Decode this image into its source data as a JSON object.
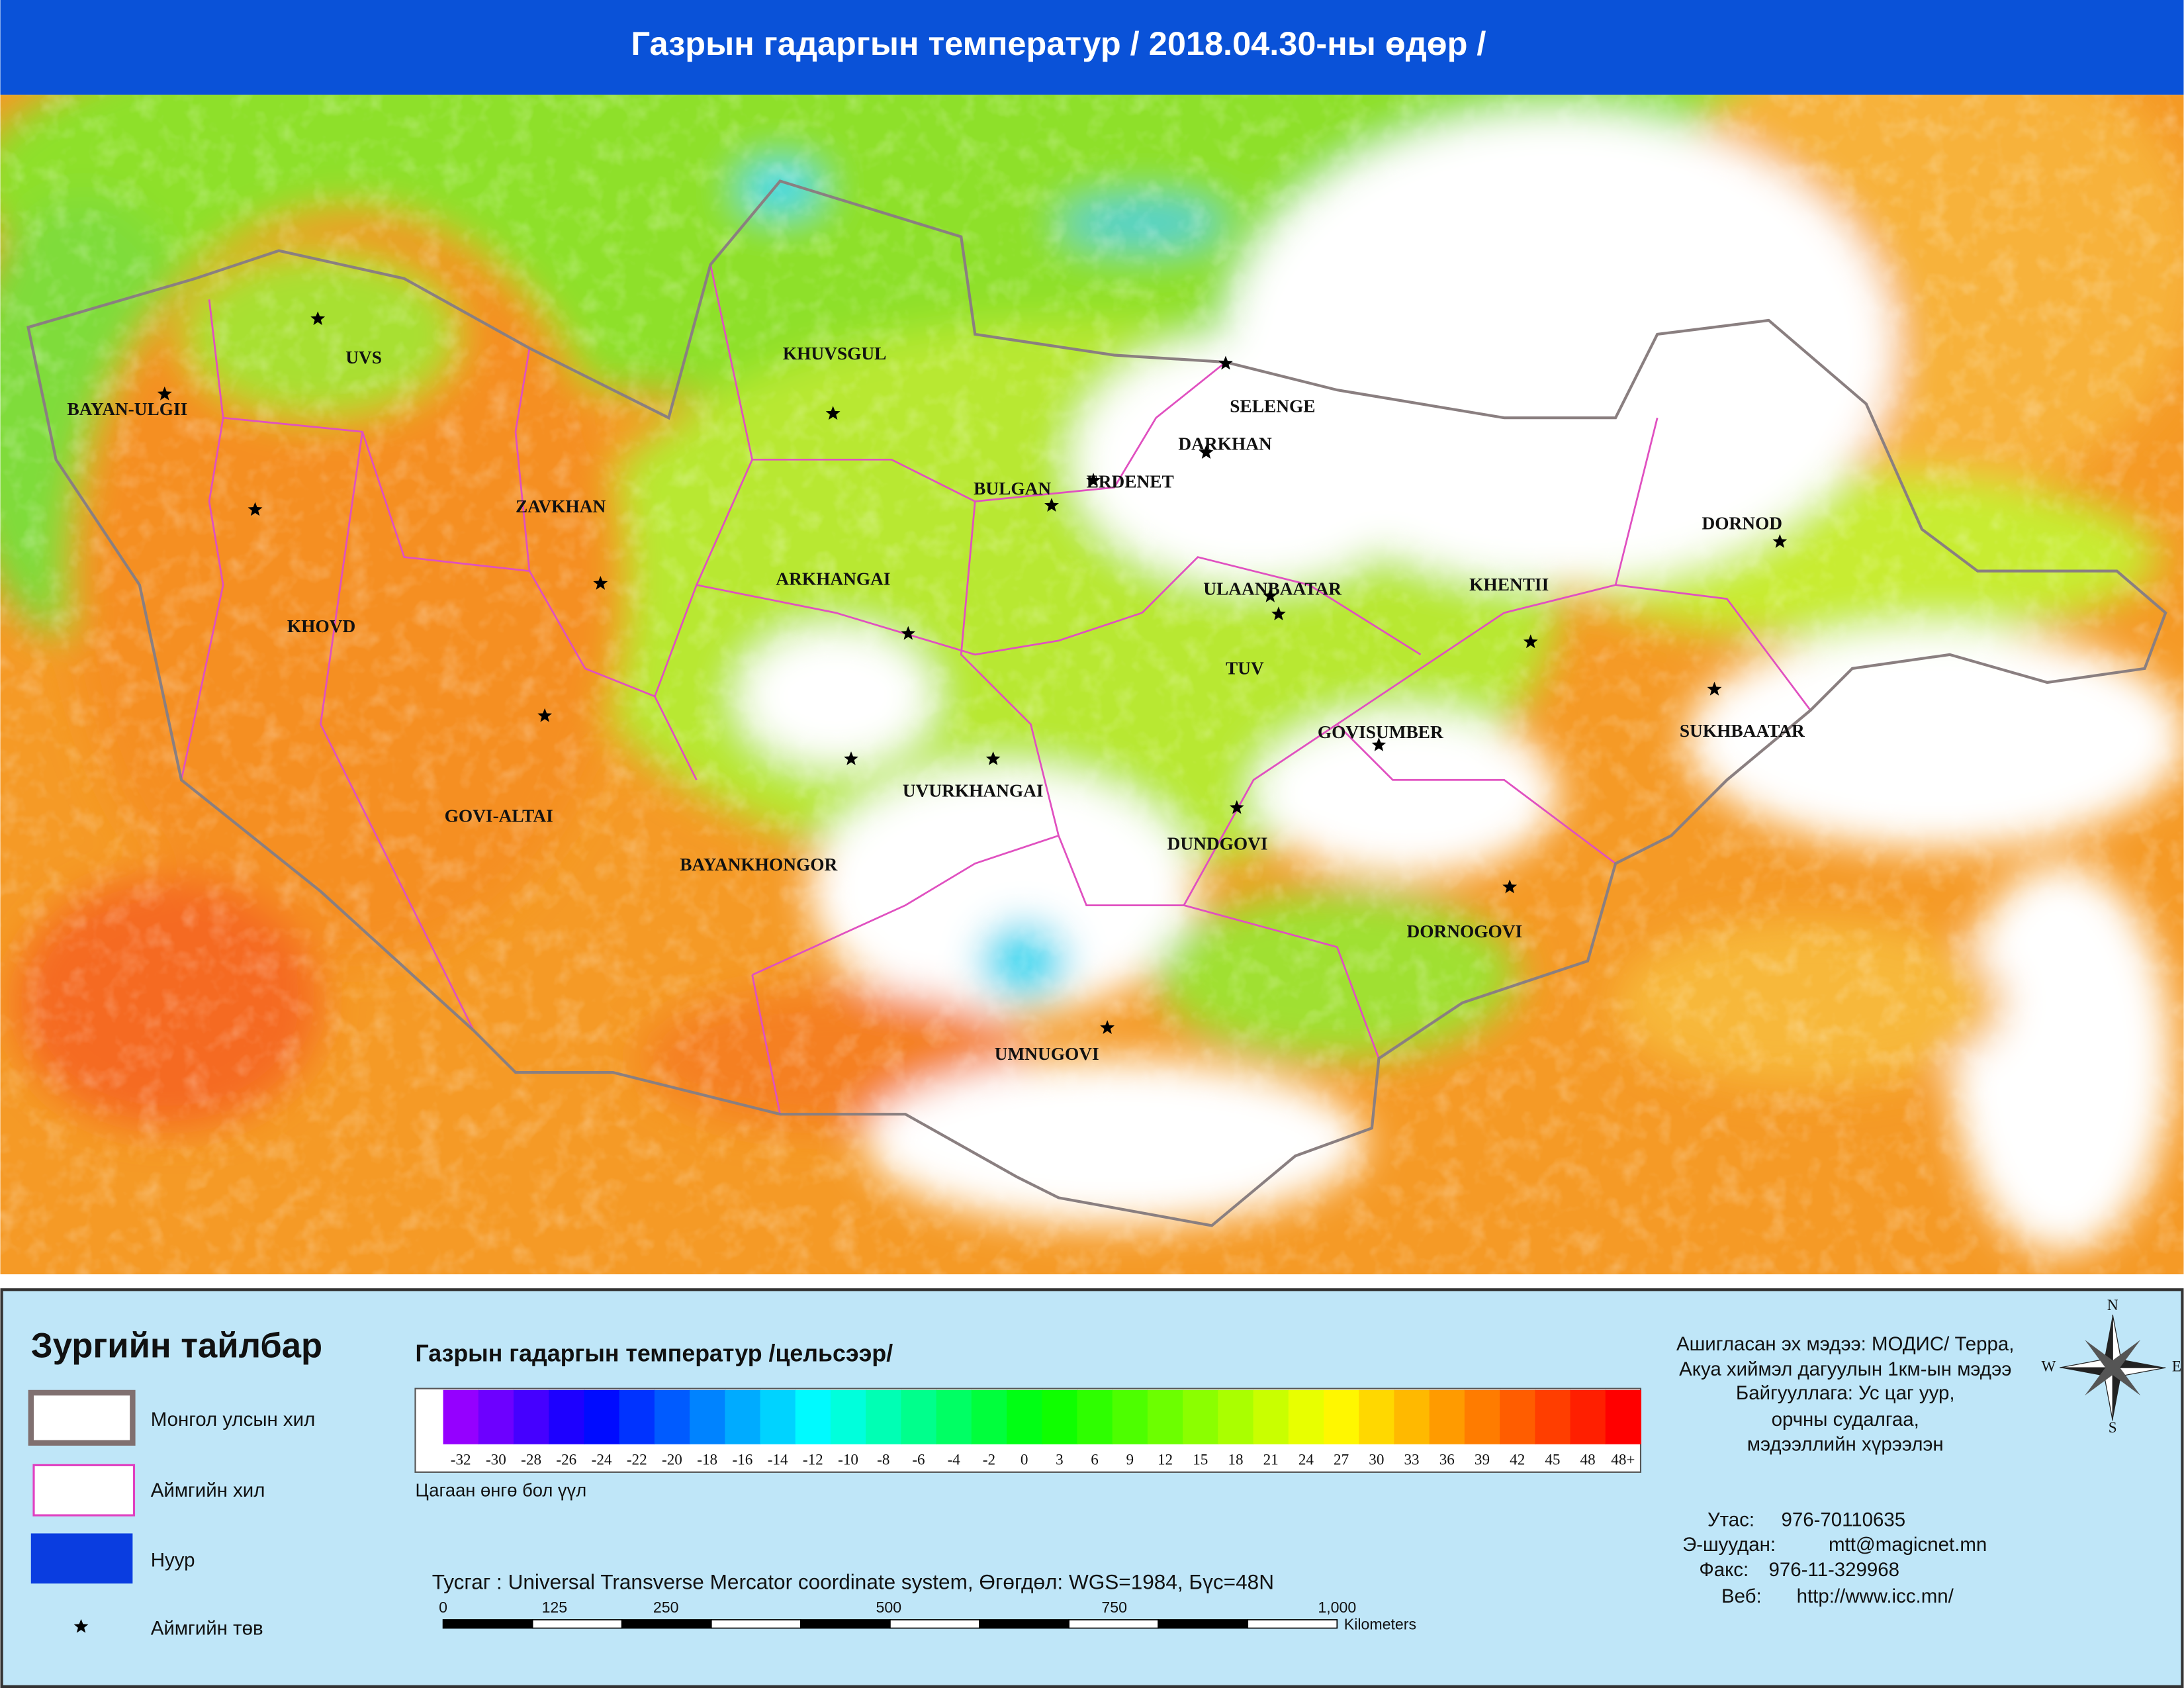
{
  "header": {
    "title": "Газрын гадаргын температур / 2018.04.30-ны өдөр /"
  },
  "map": {
    "provinces": [
      "BAYAN-ULGII",
      "UVS",
      "KHUVSGUL",
      "SELENGE",
      "DARKHAN",
      "BULGAN",
      "ERDENET",
      "ZAVKHAN",
      "DORNOD",
      "ARKHANGAI",
      "ULAANBAATAR",
      "KHENTII",
      "KHOVD",
      "TUV",
      "GOVISUMBER",
      "SUKHBAATAR",
      "UVURKHANGAI",
      "GOVI-ALTAI",
      "DUNDGOVI",
      "BAYANKHONGOR",
      "DORNOGOVI",
      "UMNUGOVI"
    ]
  },
  "legend": {
    "title": "Зургийн тайлбар",
    "items": [
      "Монгол улсын хил",
      "Аймгийн хил",
      "Нуур",
      "Аймгийн төв"
    ]
  },
  "temperature_scale": {
    "title": "Газрын гадаргын температур /цельсээр/",
    "labels": [
      "-32",
      "-30",
      "-28",
      "-26",
      "-24",
      "-22",
      "-20",
      "-18",
      "-16",
      "-14",
      "-12",
      "-10",
      "-8",
      "-6",
      "-4",
      "-2",
      "0",
      "3",
      "6",
      "9",
      "12",
      "15",
      "18",
      "21",
      "24",
      "27",
      "30",
      "33",
      "36",
      "39",
      "42",
      "45",
      "48",
      "48+"
    ],
    "note": "Цагаан өнгө бол үүл"
  },
  "projection": "Тусгаг : Universal Transverse Mercator coordinate system, Өгөгдөл: WGS=1984, Бүс=48N",
  "scale_bar": {
    "labels": [
      "0",
      "125",
      "250",
      "500",
      "750",
      "1,000"
    ],
    "unit": "Kilometers"
  },
  "compass": {
    "n": "N",
    "e": "E",
    "s": "S",
    "w": "W"
  },
  "source": {
    "lines": [
      "Ашигласан эх мэдээ: МОДИС/ Терра,",
      "Акуа хиймэл дагуулын 1км-ын мэдээ",
      "Байгууллага: Ус цаг уур,",
      "орчны судалгаа,",
      "мэдээллийн хүрээлэн"
    ]
  },
  "contacts": [
    {
      "label": "Утас:",
      "value": "976-70110635"
    },
    {
      "label": "Э-шуудан:",
      "value": "mtt@magicnet.mn"
    },
    {
      "label": "Факс:",
      "value": "976-11-329968"
    },
    {
      "label": "Веб:",
      "value": "http://www.icc.mn/"
    }
  ]
}
